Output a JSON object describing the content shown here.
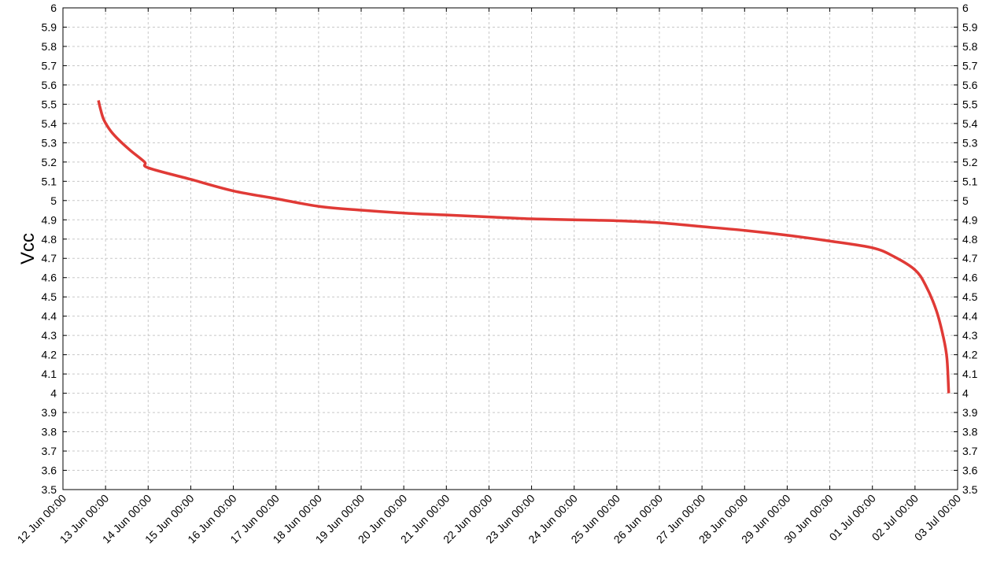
{
  "chart_data": {
    "type": "line",
    "title": "",
    "xlabel": "",
    "ylabel": "Vcc",
    "ylim": [
      3.5,
      6
    ],
    "yticks": [
      "3.5",
      "3.6",
      "3.7",
      "3.8",
      "3.9",
      "4",
      "4.1",
      "4.2",
      "4.3",
      "4.4",
      "4.5",
      "4.6",
      "4.7",
      "4.8",
      "4.9",
      "5",
      "5.1",
      "5.2",
      "5.3",
      "5.4",
      "5.5",
      "5.6",
      "5.7",
      "5.8",
      "5.9",
      "6"
    ],
    "xlim": [
      "2024-06-12 00:00",
      "2024-07-03 00:00"
    ],
    "xticks": [
      "12 Jun 00:00",
      "13 Jun 00:00",
      "14 Jun 00:00",
      "15 Jun 00:00",
      "16 Jun 00:00",
      "17 Jun 00:00",
      "18 Jun 00:00",
      "19 Jun 00:00",
      "20 Jun 00:00",
      "21 Jun 00:00",
      "22 Jun 00:00",
      "23 Jun 00:00",
      "24 Jun 00:00",
      "25 Jun 00:00",
      "26 Jun 00:00",
      "27 Jun 00:00",
      "28 Jun 00:00",
      "29 Jun 00:00",
      "30 Jun 00:00",
      "01 Jul 00:00",
      "02 Jul 00:00",
      "03 Jul 00:00"
    ],
    "grid": true,
    "y_axis_both_sides": true,
    "series": [
      {
        "color": "#e03a36",
        "x": [
          "2024-06-12 20:00",
          "2024-06-12 21:00",
          "2024-06-12 23:00",
          "2024-06-13 03:00",
          "2024-06-13 08:00",
          "2024-06-13 14:00",
          "2024-06-13 22:00",
          "2024-06-14 00:00",
          "2024-06-15 00:00",
          "2024-06-16 00:00",
          "2024-06-17 00:00",
          "2024-06-18 00:00",
          "2024-06-19 00:00",
          "2024-06-20 00:00",
          "2024-06-21 00:00",
          "2024-06-22 00:00",
          "2024-06-23 00:00",
          "2024-06-24 00:00",
          "2024-06-25 00:00",
          "2024-06-26 00:00",
          "2024-06-27 00:00",
          "2024-06-28 00:00",
          "2024-06-29 00:00",
          "2024-06-30 00:00",
          "2024-07-01 00:00",
          "2024-07-01 12:00",
          "2024-07-02 00:00",
          "2024-07-02 06:00",
          "2024-07-02 12:00",
          "2024-07-02 16:00",
          "2024-07-02 18:00",
          "2024-07-02 19:00"
        ],
        "y": [
          5.52,
          5.48,
          5.42,
          5.36,
          5.31,
          5.26,
          5.2,
          5.17,
          5.11,
          5.05,
          5.01,
          4.97,
          4.95,
          4.935,
          4.925,
          4.915,
          4.905,
          4.9,
          4.895,
          4.885,
          4.865,
          4.845,
          4.82,
          4.79,
          4.755,
          4.71,
          4.64,
          4.56,
          4.43,
          4.29,
          4.18,
          4.0
        ]
      }
    ]
  }
}
